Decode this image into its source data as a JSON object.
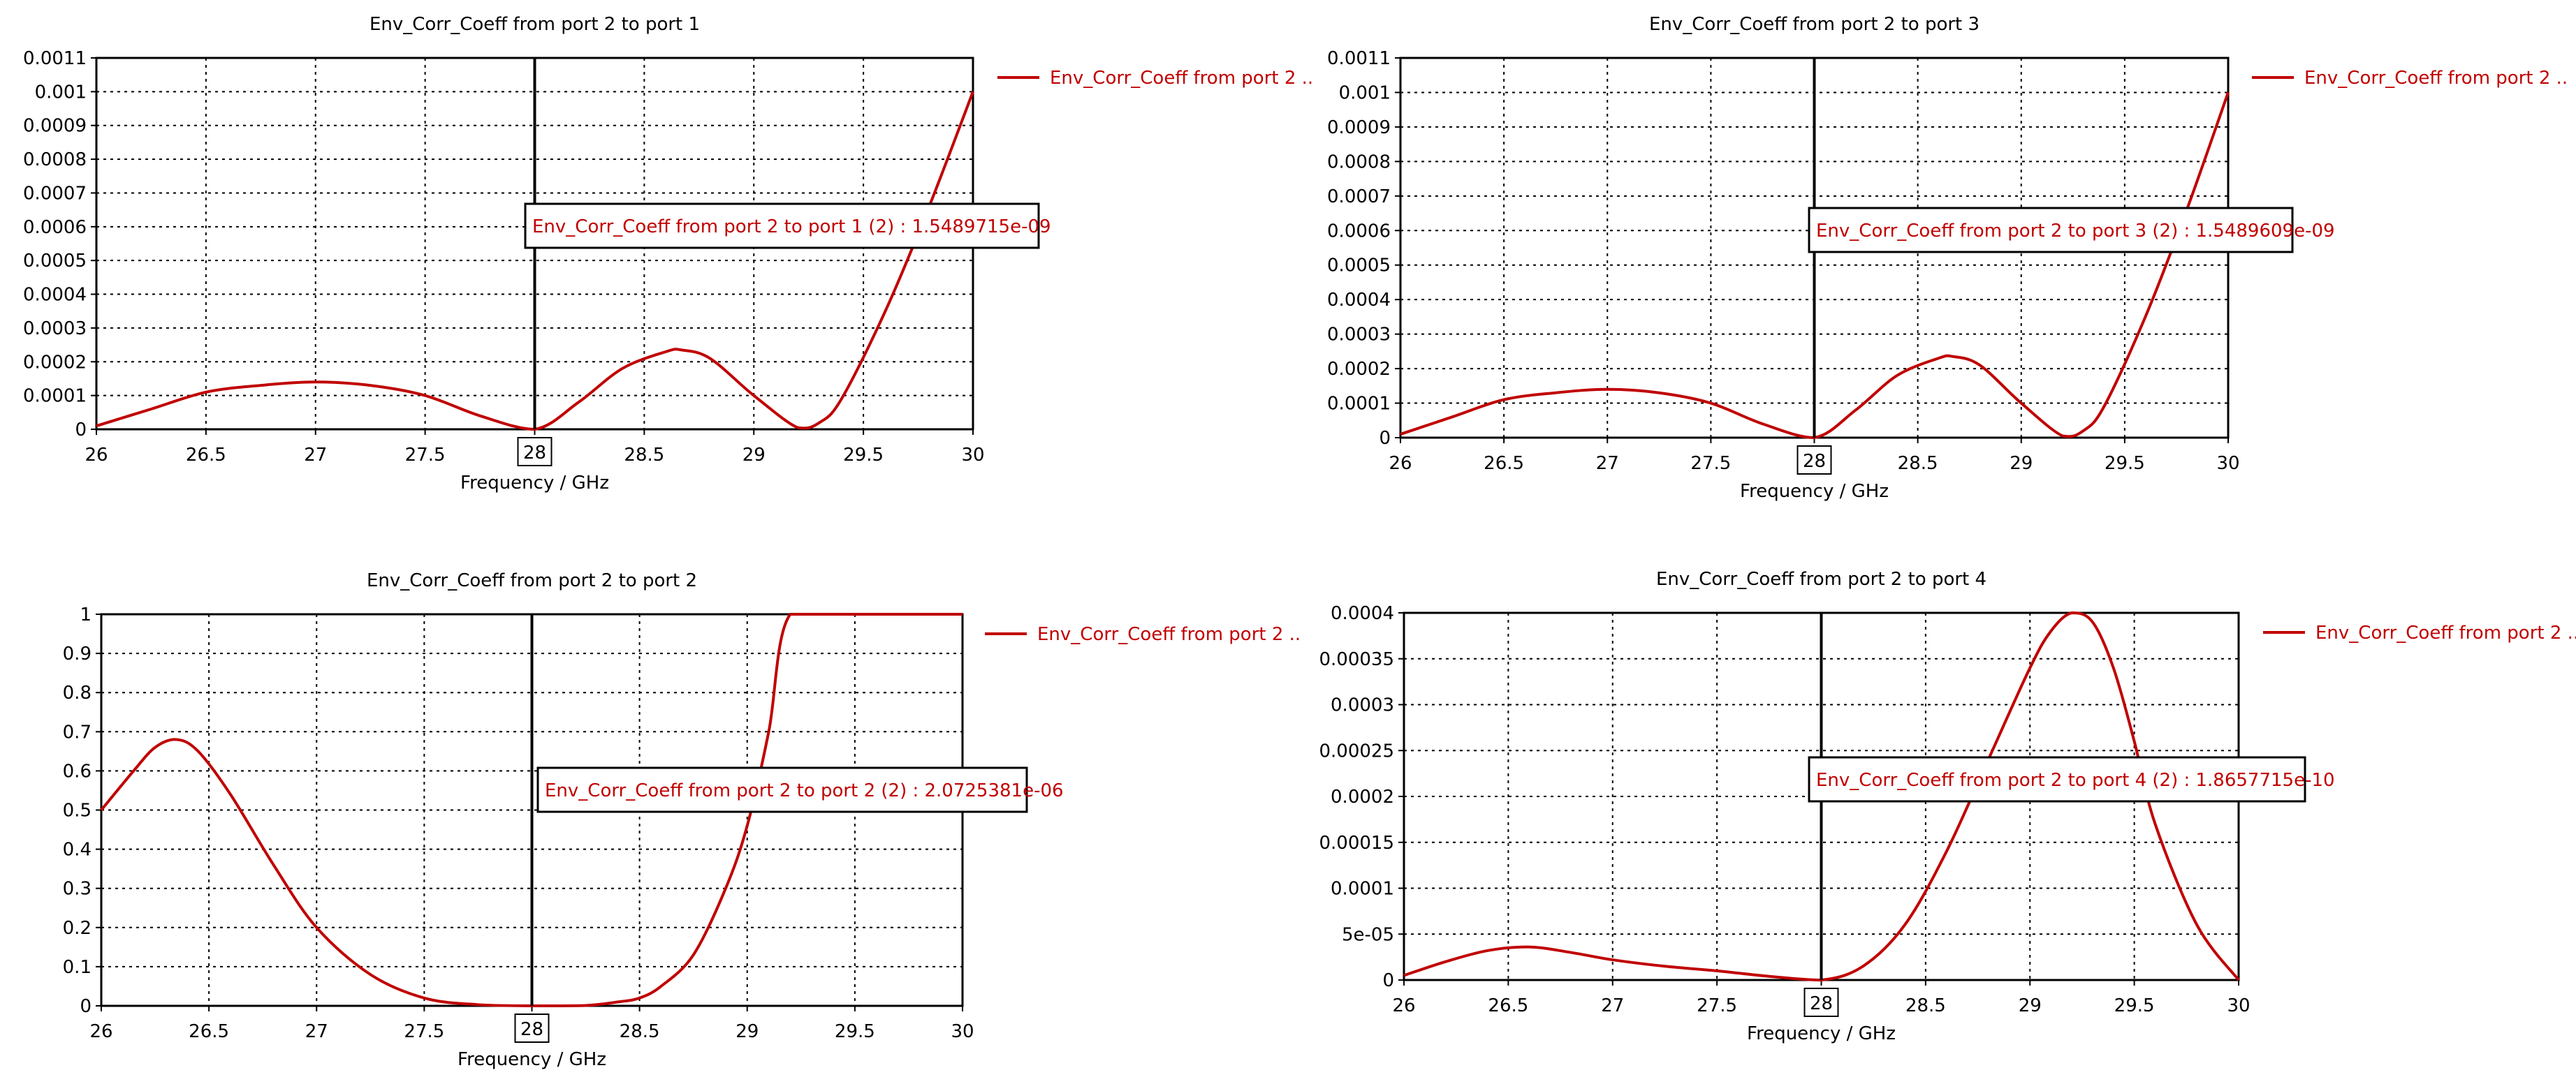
{
  "colors": {
    "series": "#c00000",
    "axis": "#000000",
    "grid": "#000000",
    "background": "#ffffff"
  },
  "chart_data": [
    {
      "type": "line",
      "title": "Env_Corr_Coeff from port 2 to port 1",
      "xlabel": "Frequency / GHz",
      "ylabel": "",
      "xlim": [
        26,
        30
      ],
      "ylim": [
        0,
        0.0011
      ],
      "xticks": [
        "26",
        "26.5",
        "27",
        "27.5",
        "28",
        "28.5",
        "29",
        "29.5",
        "30"
      ],
      "yticks": [
        "0",
        "0.0001",
        "0.0002",
        "0.0003",
        "0.0004",
        "0.0005",
        "0.0006",
        "0.0007",
        "0.0008",
        "0.0009",
        "0.001",
        "0.0011"
      ],
      "grid": true,
      "legend": {
        "position": "top-right",
        "label": "Env_Corr_Coeff from port 2 .."
      },
      "marker": {
        "x": 28,
        "x_label": "28",
        "label": "Env_Corr_Coeff from port 2 to port 1 (2) : 1.5489715e-09"
      },
      "series": [
        {
          "x": [
            26,
            26.25,
            26.5,
            26.75,
            27,
            27.25,
            27.5,
            27.75,
            28,
            28.2,
            28.4,
            28.6,
            28.67,
            28.8,
            29,
            29.2,
            29.3,
            29.4,
            29.6,
            29.8,
            30
          ],
          "y": [
            1e-05,
            6e-05,
            0.00011,
            0.00013,
            0.00014,
            0.00013,
            0.0001,
            4e-05,
            0,
            8e-05,
            0.00018,
            0.00023,
            0.000235,
            0.00021,
            0.0001,
            5e-06,
            2e-05,
            9e-05,
            0.00035,
            0.00066,
            0.001
          ]
        }
      ]
    },
    {
      "type": "line",
      "title": "Env_Corr_Coeff from port 2 to port 3",
      "xlabel": "Frequency / GHz",
      "ylabel": "",
      "xlim": [
        26,
        30
      ],
      "ylim": [
        0,
        0.0011
      ],
      "xticks": [
        "26",
        "26.5",
        "27",
        "27.5",
        "28",
        "28.5",
        "29",
        "29.5",
        "30"
      ],
      "yticks": [
        "0",
        "0.0001",
        "0.0002",
        "0.0003",
        "0.0004",
        "0.0005",
        "0.0006",
        "0.0007",
        "0.0008",
        "0.0009",
        "0.001",
        "0.0011"
      ],
      "grid": true,
      "legend": {
        "position": "top-right",
        "label": "Env_Corr_Coeff from port 2 .."
      },
      "marker": {
        "x": 28,
        "x_label": "28",
        "label": "Env_Corr_Coeff from port 2 to port 3 (2) : 1.5489609e-09"
      },
      "series": [
        {
          "x": [
            26,
            26.25,
            26.5,
            26.75,
            27,
            27.25,
            27.5,
            27.75,
            28,
            28.2,
            28.4,
            28.6,
            28.67,
            28.8,
            29,
            29.2,
            29.3,
            29.4,
            29.6,
            29.8,
            30
          ],
          "y": [
            1e-05,
            6e-05,
            0.00011,
            0.00013,
            0.00014,
            0.00013,
            0.0001,
            4e-05,
            0,
            8e-05,
            0.00018,
            0.00023,
            0.000235,
            0.00021,
            0.0001,
            5e-06,
            2e-05,
            9e-05,
            0.00035,
            0.00066,
            0.001
          ]
        }
      ]
    },
    {
      "type": "line",
      "title": "Env_Corr_Coeff from port 2 to port 2",
      "xlabel": "Frequency / GHz",
      "ylabel": "",
      "xlim": [
        26,
        30
      ],
      "ylim": [
        0,
        1
      ],
      "xticks": [
        "26",
        "26.5",
        "27",
        "27.5",
        "28",
        "28.5",
        "29",
        "29.5",
        "30"
      ],
      "yticks": [
        "0",
        "0.1",
        "0.2",
        "0.3",
        "0.4",
        "0.5",
        "0.6",
        "0.7",
        "0.8",
        "0.9",
        "1"
      ],
      "grid": true,
      "legend": {
        "position": "top-right",
        "label": "Env_Corr_Coeff from port 2 .."
      },
      "marker": {
        "x": 28,
        "x_label": "28",
        "label": "Env_Corr_Coeff from port 2 to port 2 (2) : 2.0725381e-06"
      },
      "series": [
        {
          "x": [
            26,
            26.15,
            26.25,
            26.35,
            26.45,
            26.6,
            26.8,
            27,
            27.25,
            27.5,
            27.75,
            28,
            28.25,
            28.4,
            28.5,
            28.6,
            28.75,
            28.9,
            29,
            29.1,
            29.2,
            29.5,
            30
          ],
          "y": [
            0.5,
            0.6,
            0.66,
            0.68,
            0.65,
            0.54,
            0.36,
            0.2,
            0.08,
            0.02,
            0.003,
            0.0,
            0.001,
            0.01,
            0.02,
            0.05,
            0.13,
            0.3,
            0.46,
            0.7,
            1.0,
            1.0,
            1.0
          ]
        }
      ]
    },
    {
      "type": "line",
      "title": "Env_Corr_Coeff from port 2 to port 4",
      "xlabel": "Frequency / GHz",
      "ylabel": "",
      "xlim": [
        26,
        30
      ],
      "ylim": [
        0,
        0.0004
      ],
      "xticks": [
        "26",
        "26.5",
        "27",
        "27.5",
        "28",
        "28.5",
        "29",
        "29.5",
        "30"
      ],
      "yticks": [
        "0",
        "5e-05",
        "0.0001",
        "0.00015",
        "0.0002",
        "0.00025",
        "0.0003",
        "0.00035",
        "0.0004"
      ],
      "grid": true,
      "legend": {
        "position": "top-right",
        "label": "Env_Corr_Coeff from port 2 .."
      },
      "marker": {
        "x": 28,
        "x_label": "28",
        "label": "Env_Corr_Coeff from port 2 to port 4 (2) : 1.8657715e-10"
      },
      "series": [
        {
          "x": [
            26,
            26.2,
            26.4,
            26.6,
            26.8,
            27,
            27.25,
            27.5,
            27.75,
            28,
            28.2,
            28.4,
            28.6,
            28.8,
            29,
            29.1,
            29.2,
            29.3,
            29.4,
            29.5,
            29.6,
            29.8,
            30
          ],
          "y": [
            5e-06,
            2e-05,
            3.2e-05,
            3.6e-05,
            3e-05,
            2.2e-05,
            1.5e-05,
            1e-05,
            4e-06,
            0,
            1.5e-05,
            6e-05,
            0.00014,
            0.00024,
            0.00034,
            0.00038,
            0.0004,
            0.00039,
            0.00034,
            0.00026,
            0.00017,
            6e-05,
            0
          ]
        }
      ]
    }
  ]
}
